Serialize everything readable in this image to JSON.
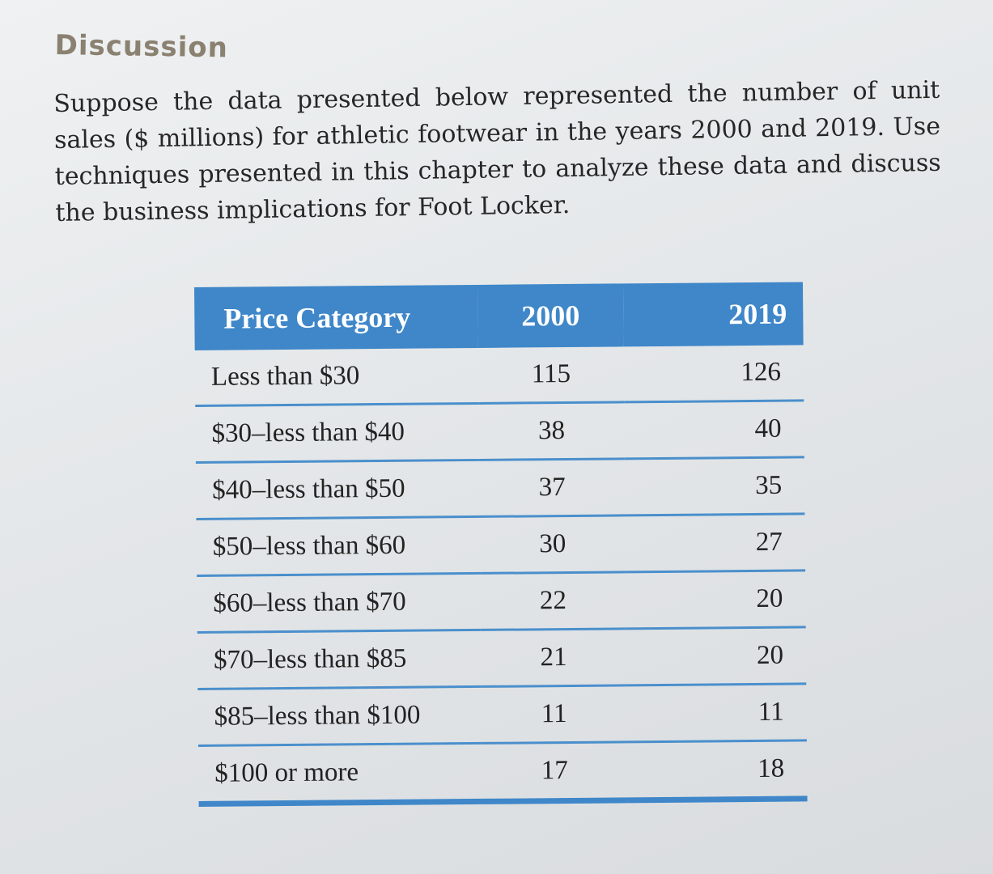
{
  "heading": "Discussion",
  "prompt": "Suppose the data presented below represented the number of unit sales ($ millions) for athletic footwear in the years 2000 and 2019. Use techniques presented in this chapter to analyze these data and discuss the business implications for Foot Locker.",
  "table": {
    "columns": [
      "Price Category",
      "2000",
      "2019"
    ],
    "rows": [
      {
        "category": "Less than $30",
        "y2000": "115",
        "y2019": "126"
      },
      {
        "category": "$30–less than $40",
        "y2000": "38",
        "y2019": "40"
      },
      {
        "category": "$40–less than $50",
        "y2000": "37",
        "y2019": "35"
      },
      {
        "category": "$50–less than $60",
        "y2000": "30",
        "y2019": "27"
      },
      {
        "category": "$60–less than $70",
        "y2000": "22",
        "y2019": "20"
      },
      {
        "category": "$70–less than $85",
        "y2000": "21",
        "y2019": "20"
      },
      {
        "category": "$85–less than $100",
        "y2000": "11",
        "y2019": "11"
      },
      {
        "category": "$100 or more",
        "y2000": "17",
        "y2019": "18"
      }
    ]
  },
  "colors": {
    "header_fill": "#3f87c9",
    "rule": "#4a8fcc",
    "heading_text": "#8b8171"
  }
}
